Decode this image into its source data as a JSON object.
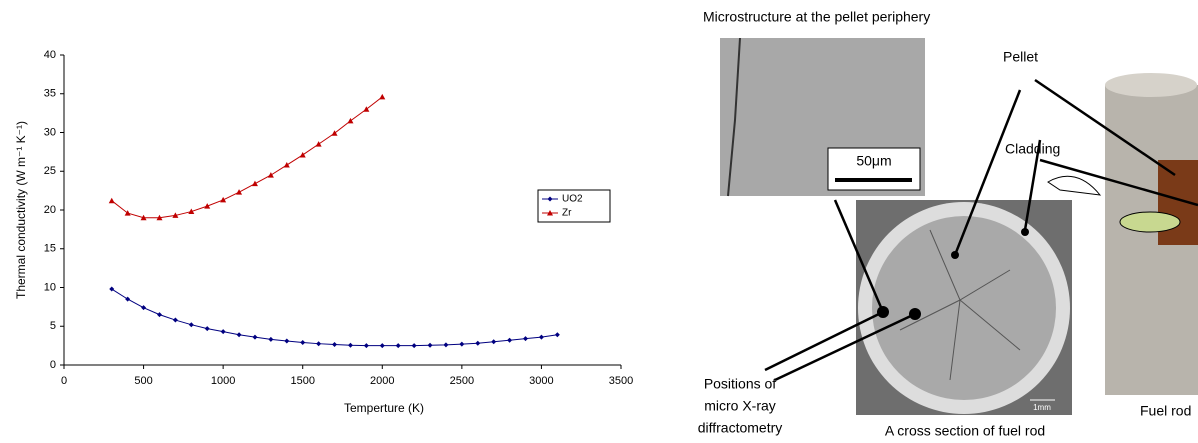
{
  "chart_data": {
    "type": "line",
    "xlabel": "Temperture (K)",
    "ylabel": "Thermal conductivity (W m⁻¹ K⁻¹)",
    "xlim": [
      0,
      3500
    ],
    "xticks": [
      0,
      500,
      1000,
      1500,
      2000,
      2500,
      3000,
      3500
    ],
    "ylim": [
      0,
      40
    ],
    "yticks": [
      0,
      5,
      10,
      15,
      20,
      25,
      30,
      35,
      40
    ],
    "legend": "right",
    "series": [
      {
        "name": "UO2",
        "color": "#000080",
        "marker": "diamond",
        "x": [
          300,
          400,
          500,
          600,
          700,
          800,
          900,
          1000,
          1100,
          1200,
          1300,
          1400,
          1500,
          1600,
          1700,
          1800,
          1900,
          2000,
          2100,
          2200,
          2300,
          2400,
          2500,
          2600,
          2700,
          2800,
          2900,
          3000,
          3100
        ],
        "values": [
          9.8,
          8.5,
          7.4,
          6.5,
          5.8,
          5.2,
          4.7,
          4.3,
          3.9,
          3.6,
          3.3,
          3.1,
          2.9,
          2.75,
          2.65,
          2.55,
          2.5,
          2.5,
          2.5,
          2.5,
          2.55,
          2.6,
          2.7,
          2.8,
          3.0,
          3.2,
          3.4,
          3.6,
          3.9
        ]
      },
      {
        "name": "Zr",
        "color": "#c00000",
        "marker": "triangle",
        "x": [
          300,
          400,
          500,
          600,
          700,
          800,
          900,
          1000,
          1100,
          1200,
          1300,
          1400,
          1500,
          1600,
          1700,
          1800,
          1900,
          2000
        ],
        "values": [
          21.2,
          19.6,
          19.0,
          19.0,
          19.3,
          19.8,
          20.5,
          21.3,
          22.3,
          23.4,
          24.5,
          25.8,
          27.1,
          28.5,
          29.9,
          31.5,
          33.0,
          34.6
        ]
      }
    ]
  },
  "figure": {
    "title": "Microstructure at the pellet periphery",
    "scale_bar": "50μm",
    "pellet": "Pellet",
    "cladding": "Cladding",
    "positions": [
      "Positions of",
      "micro X-ray",
      "diffractometry"
    ],
    "cross_section": "A cross section of fuel rod",
    "scale_mm": "1mm",
    "fuel_rod": "Fuel rod"
  }
}
